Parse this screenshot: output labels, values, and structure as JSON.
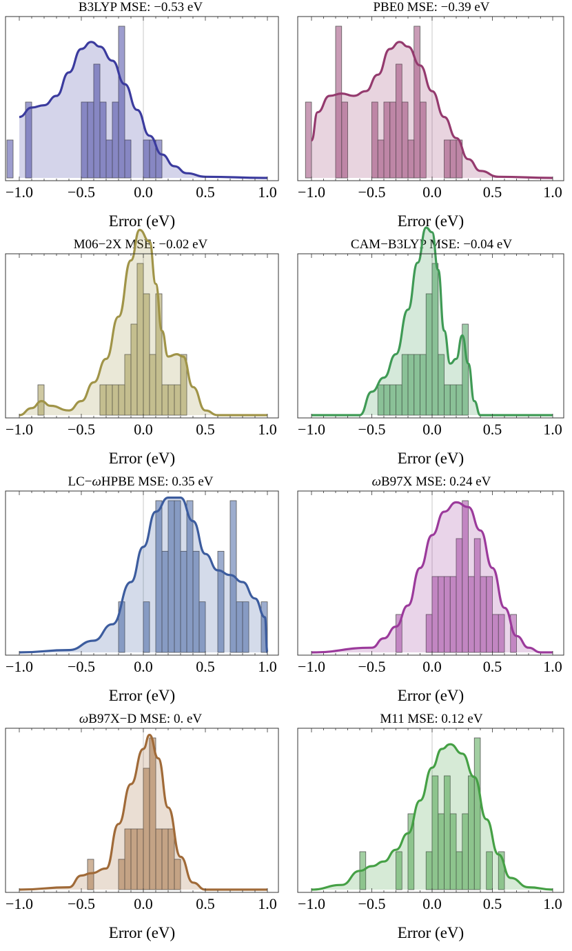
{
  "x_axis_label": "Error (eV)",
  "chart_data": [
    {
      "type": "bar",
      "title": "B3LYP MSE: −0.53 eV",
      "xlabel": "Error (eV)",
      "xlim": [
        -1.0,
        1.0
      ],
      "x_ticks": [
        "−1.0",
        "−0.5",
        "0.0",
        "0.5",
        "1.0"
      ],
      "bin_width": 0.05,
      "color": "#3b3b9e",
      "bins": [
        [
          -1.1,
          1
        ],
        [
          -0.95,
          2
        ],
        [
          -0.5,
          2
        ],
        [
          -0.45,
          2
        ],
        [
          -0.4,
          3
        ],
        [
          -0.35,
          2
        ],
        [
          -0.3,
          1
        ],
        [
          -0.25,
          2
        ],
        [
          -0.2,
          4
        ],
        [
          -0.15,
          1
        ],
        [
          0.0,
          1
        ],
        [
          0.05,
          1
        ],
        [
          0.1,
          1
        ]
      ],
      "density": [
        [
          -1.0,
          0.26
        ],
        [
          -0.9,
          0.3
        ],
        [
          -0.8,
          0.31
        ],
        [
          -0.7,
          0.35
        ],
        [
          -0.6,
          0.45
        ],
        [
          -0.5,
          0.55
        ],
        [
          -0.42,
          0.58
        ],
        [
          -0.35,
          0.56
        ],
        [
          -0.25,
          0.5
        ],
        [
          -0.15,
          0.4
        ],
        [
          -0.05,
          0.29
        ],
        [
          0.05,
          0.18
        ],
        [
          0.15,
          0.1
        ],
        [
          0.25,
          0.05
        ],
        [
          0.35,
          0.02
        ],
        [
          0.5,
          0.005
        ],
        [
          1.0,
          0.0
        ]
      ]
    },
    {
      "type": "bar",
      "title": "PBE0 MSE: −0.39 eV",
      "xlabel": "Error (eV)",
      "xlim": [
        -1.0,
        1.0
      ],
      "x_ticks": [
        "−1.0",
        "−0.5",
        "0.0",
        "0.5",
        "1.0"
      ],
      "bin_width": 0.05,
      "color": "#943a6e",
      "bins": [
        [
          -1.05,
          2
        ],
        [
          -0.8,
          4
        ],
        [
          -0.75,
          2
        ],
        [
          -0.5,
          2
        ],
        [
          -0.45,
          1
        ],
        [
          -0.4,
          2
        ],
        [
          -0.35,
          2
        ],
        [
          -0.3,
          3
        ],
        [
          -0.25,
          2
        ],
        [
          -0.2,
          1
        ],
        [
          -0.15,
          4
        ],
        [
          -0.1,
          2
        ],
        [
          0.1,
          1
        ],
        [
          0.15,
          1
        ],
        [
          0.2,
          1
        ]
      ],
      "density": [
        [
          -1.0,
          0.16
        ],
        [
          -0.95,
          0.28
        ],
        [
          -0.85,
          0.35
        ],
        [
          -0.75,
          0.36
        ],
        [
          -0.65,
          0.35
        ],
        [
          -0.55,
          0.37
        ],
        [
          -0.45,
          0.44
        ],
        [
          -0.35,
          0.55
        ],
        [
          -0.27,
          0.58
        ],
        [
          -0.2,
          0.56
        ],
        [
          -0.1,
          0.48
        ],
        [
          0.0,
          0.37
        ],
        [
          0.1,
          0.26
        ],
        [
          0.2,
          0.17
        ],
        [
          0.3,
          0.08
        ],
        [
          0.4,
          0.03
        ],
        [
          0.55,
          0.005
        ],
        [
          1.0,
          0.0
        ]
      ]
    },
    {
      "type": "bar",
      "title": "M06−2X MSE: −0.02 eV",
      "xlabel": "Error (eV)",
      "xlim": [
        -1.0,
        1.0
      ],
      "x_ticks": [
        "−1.0",
        "−0.5",
        "0.0",
        "0.5",
        "1.0"
      ],
      "bin_width": 0.05,
      "color": "#a09448",
      "bins": [
        [
          -0.85,
          1
        ],
        [
          -0.35,
          1
        ],
        [
          -0.3,
          1
        ],
        [
          -0.25,
          1
        ],
        [
          -0.2,
          1
        ],
        [
          -0.15,
          2
        ],
        [
          -0.1,
          3
        ],
        [
          -0.05,
          5
        ],
        [
          0.0,
          4
        ],
        [
          0.05,
          2
        ],
        [
          0.1,
          4
        ],
        [
          0.15,
          1
        ],
        [
          0.2,
          1
        ],
        [
          0.25,
          1
        ],
        [
          0.3,
          2
        ]
      ],
      "density": [
        [
          -1.0,
          0.0
        ],
        [
          -0.9,
          0.03
        ],
        [
          -0.82,
          0.06
        ],
        [
          -0.75,
          0.04
        ],
        [
          -0.6,
          0.02
        ],
        [
          -0.5,
          0.06
        ],
        [
          -0.4,
          0.14
        ],
        [
          -0.3,
          0.24
        ],
        [
          -0.2,
          0.42
        ],
        [
          -0.1,
          0.66
        ],
        [
          -0.03,
          0.79
        ],
        [
          0.05,
          0.74
        ],
        [
          0.1,
          0.56
        ],
        [
          0.15,
          0.36
        ],
        [
          0.2,
          0.25
        ],
        [
          0.27,
          0.26
        ],
        [
          0.32,
          0.25
        ],
        [
          0.4,
          0.12
        ],
        [
          0.5,
          0.02
        ],
        [
          0.6,
          0.0
        ],
        [
          1.0,
          0.0
        ]
      ]
    },
    {
      "type": "bar",
      "title": "CAM−B3LYP MSE: −0.04 eV",
      "xlabel": "Error (eV)",
      "xlim": [
        -1.0,
        1.0
      ],
      "x_ticks": [
        "−1.0",
        "−0.5",
        "0.0",
        "0.5",
        "1.0"
      ],
      "bin_width": 0.05,
      "color": "#3f9a55",
      "bins": [
        [
          -0.45,
          1
        ],
        [
          -0.4,
          1
        ],
        [
          -0.35,
          1
        ],
        [
          -0.3,
          1
        ],
        [
          -0.25,
          2
        ],
        [
          -0.2,
          2
        ],
        [
          -0.15,
          2
        ],
        [
          -0.1,
          2
        ],
        [
          -0.05,
          4
        ],
        [
          0.0,
          5
        ],
        [
          0.05,
          2
        ],
        [
          0.1,
          1
        ],
        [
          0.15,
          1
        ],
        [
          0.2,
          1
        ],
        [
          0.25,
          3
        ]
      ],
      "density": [
        [
          -1.0,
          0.0
        ],
        [
          -0.6,
          0.0
        ],
        [
          -0.5,
          0.1
        ],
        [
          -0.4,
          0.16
        ],
        [
          -0.3,
          0.26
        ],
        [
          -0.2,
          0.45
        ],
        [
          -0.12,
          0.65
        ],
        [
          -0.05,
          0.8
        ],
        [
          0.0,
          0.78
        ],
        [
          0.05,
          0.62
        ],
        [
          0.1,
          0.36
        ],
        [
          0.15,
          0.22
        ],
        [
          0.2,
          0.24
        ],
        [
          0.25,
          0.34
        ],
        [
          0.3,
          0.22
        ],
        [
          0.35,
          0.06
        ],
        [
          0.4,
          0.0
        ],
        [
          1.0,
          0.0
        ]
      ]
    },
    {
      "type": "bar",
      "title": "LC−ωHPBE MSE: 0.35 eV",
      "xlabel": "Error (eV)",
      "xlim": [
        -1.0,
        1.0
      ],
      "x_ticks": [
        "−1.0",
        "−0.5",
        "0.0",
        "0.5",
        "1.0"
      ],
      "bin_width": 0.05,
      "color": "#3c5c9e",
      "bins": [
        [
          -0.2,
          1
        ],
        [
          0.0,
          1
        ],
        [
          0.1,
          3
        ],
        [
          0.15,
          2
        ],
        [
          0.2,
          3
        ],
        [
          0.25,
          3
        ],
        [
          0.3,
          2
        ],
        [
          0.35,
          3
        ],
        [
          0.4,
          2
        ],
        [
          0.45,
          1
        ],
        [
          0.6,
          2
        ],
        [
          0.7,
          3
        ],
        [
          0.75,
          1
        ],
        [
          0.8,
          1
        ],
        [
          0.95,
          1
        ]
      ],
      "density": [
        [
          -1.0,
          0.0
        ],
        [
          -0.6,
          0.01
        ],
        [
          -0.4,
          0.05
        ],
        [
          -0.25,
          0.12
        ],
        [
          -0.1,
          0.3
        ],
        [
          0.0,
          0.45
        ],
        [
          0.1,
          0.6
        ],
        [
          0.2,
          0.66
        ],
        [
          0.3,
          0.66
        ],
        [
          0.4,
          0.56
        ],
        [
          0.5,
          0.42
        ],
        [
          0.6,
          0.35
        ],
        [
          0.7,
          0.33
        ],
        [
          0.8,
          0.3
        ],
        [
          0.9,
          0.23
        ],
        [
          0.98,
          0.15
        ],
        [
          1.0,
          0.0
        ]
      ]
    },
    {
      "type": "bar",
      "title": "ωB97X MSE: 0.24 eV",
      "xlabel": "Error (eV)",
      "xlim": [
        -1.0,
        1.0
      ],
      "x_ticks": [
        "−1.0",
        "−0.5",
        "0.0",
        "0.5",
        "1.0"
      ],
      "bin_width": 0.05,
      "color": "#9b3a9b",
      "bins": [
        [
          -0.3,
          1
        ],
        [
          -0.05,
          1
        ],
        [
          0.0,
          2
        ],
        [
          0.05,
          2
        ],
        [
          0.1,
          2
        ],
        [
          0.15,
          2
        ],
        [
          0.2,
          3
        ],
        [
          0.25,
          4
        ],
        [
          0.3,
          2
        ],
        [
          0.35,
          3
        ],
        [
          0.4,
          2
        ],
        [
          0.45,
          2
        ],
        [
          0.5,
          1
        ],
        [
          0.55,
          1
        ],
        [
          0.65,
          1
        ]
      ],
      "density": [
        [
          -1.0,
          0.0
        ],
        [
          -0.5,
          0.02
        ],
        [
          -0.4,
          0.06
        ],
        [
          -0.3,
          0.11
        ],
        [
          -0.2,
          0.2
        ],
        [
          -0.1,
          0.36
        ],
        [
          0.0,
          0.5
        ],
        [
          0.1,
          0.6
        ],
        [
          0.2,
          0.64
        ],
        [
          0.3,
          0.62
        ],
        [
          0.4,
          0.52
        ],
        [
          0.5,
          0.36
        ],
        [
          0.6,
          0.19
        ],
        [
          0.7,
          0.07
        ],
        [
          0.8,
          0.02
        ],
        [
          0.9,
          0.0
        ],
        [
          1.0,
          0.0
        ]
      ]
    },
    {
      "type": "bar",
      "title": "ωB97X−D MSE: 0. eV",
      "xlabel": "Error (eV)",
      "xlim": [
        -1.0,
        1.0
      ],
      "x_ticks": [
        "−1.0",
        "−0.5",
        "0.0",
        "0.5",
        "1.0"
      ],
      "bin_width": 0.05,
      "color": "#a06a38",
      "bins": [
        [
          -0.45,
          1
        ],
        [
          -0.2,
          1
        ],
        [
          -0.15,
          2
        ],
        [
          -0.1,
          2
        ],
        [
          -0.05,
          2
        ],
        [
          0.0,
          4
        ],
        [
          0.05,
          5
        ],
        [
          0.1,
          2
        ],
        [
          0.15,
          2
        ],
        [
          0.2,
          2
        ],
        [
          0.25,
          1
        ]
      ],
      "density": [
        [
          -1.0,
          0.0
        ],
        [
          -0.6,
          0.01
        ],
        [
          -0.5,
          0.06
        ],
        [
          -0.42,
          0.07
        ],
        [
          -0.3,
          0.09
        ],
        [
          -0.2,
          0.28
        ],
        [
          -0.1,
          0.45
        ],
        [
          0.0,
          0.6
        ],
        [
          0.05,
          0.66
        ],
        [
          0.12,
          0.56
        ],
        [
          0.2,
          0.35
        ],
        [
          0.3,
          0.14
        ],
        [
          0.4,
          0.03
        ],
        [
          0.5,
          0.0
        ],
        [
          1.0,
          0.0
        ]
      ]
    },
    {
      "type": "bar",
      "title": "M11 MSE: 0.12 eV",
      "xlabel": "Error (eV)",
      "xlim": [
        -1.0,
        1.0
      ],
      "x_ticks": [
        "−1.0",
        "−0.5",
        "0.0",
        "0.5",
        "1.0"
      ],
      "bin_width": 0.05,
      "color": "#45a045",
      "bins": [
        [
          -0.6,
          1
        ],
        [
          -0.3,
          1
        ],
        [
          -0.2,
          2
        ],
        [
          -0.05,
          1
        ],
        [
          0.0,
          3
        ],
        [
          0.05,
          2
        ],
        [
          0.1,
          3
        ],
        [
          0.15,
          2
        ],
        [
          0.2,
          1
        ],
        [
          0.25,
          2
        ],
        [
          0.3,
          3
        ],
        [
          0.35,
          4
        ],
        [
          0.45,
          1
        ],
        [
          0.55,
          1
        ]
      ],
      "density": [
        [
          -1.0,
          0.0
        ],
        [
          -0.75,
          0.02
        ],
        [
          -0.6,
          0.08
        ],
        [
          -0.5,
          0.1
        ],
        [
          -0.4,
          0.12
        ],
        [
          -0.3,
          0.17
        ],
        [
          -0.2,
          0.24
        ],
        [
          -0.1,
          0.38
        ],
        [
          0.0,
          0.52
        ],
        [
          0.08,
          0.6
        ],
        [
          0.15,
          0.62
        ],
        [
          0.25,
          0.58
        ],
        [
          0.35,
          0.48
        ],
        [
          0.45,
          0.3
        ],
        [
          0.55,
          0.15
        ],
        [
          0.65,
          0.05
        ],
        [
          0.8,
          0.01
        ],
        [
          1.0,
          0.0
        ]
      ]
    }
  ]
}
